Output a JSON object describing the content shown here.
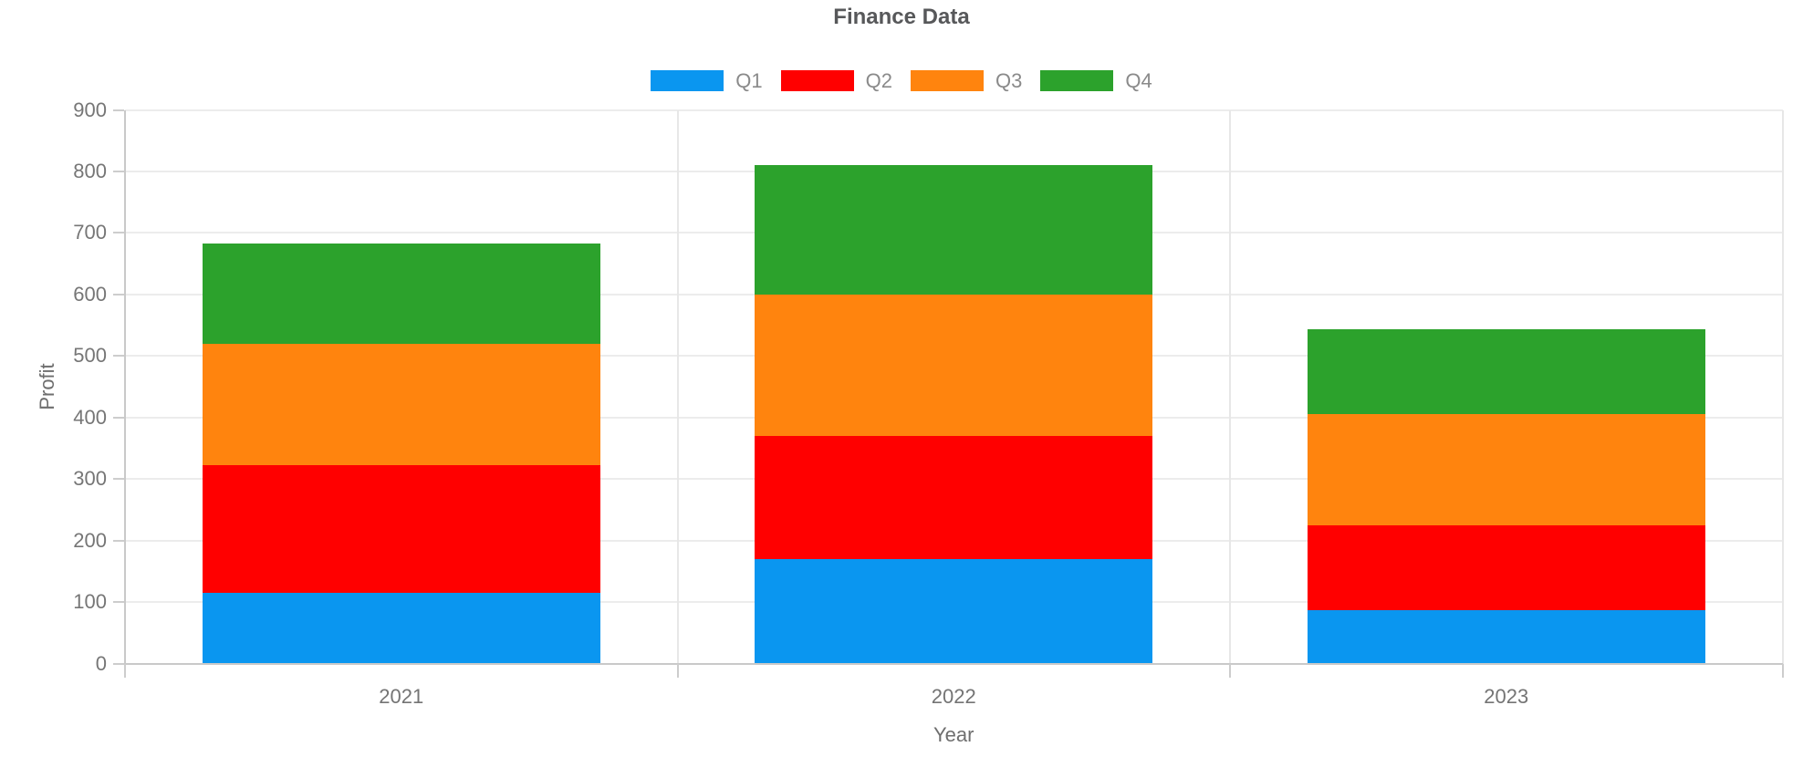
{
  "title": "Finance Data",
  "axes": {
    "y_label": "Profit",
    "x_label": "Year"
  },
  "legend": {
    "entries": [
      "Q1",
      "Q2",
      "Q3",
      "Q4"
    ]
  },
  "colors": {
    "q1_blue": "#0a96f0",
    "q2_red": "#ff0000",
    "q3_orange": "#ff840e",
    "q4_green": "#2ca22c",
    "title_text": "#57585a",
    "tick_text": "#767676",
    "axis_title_text": "#6e6e6e",
    "legend_text": "#8a8a8a",
    "gridline": "#ececec",
    "axis_line": "#c9c9c9",
    "panel_border": "#e7e7e7"
  },
  "chart_data": {
    "type": "bar",
    "stacked": true,
    "title": "Finance Data",
    "categories": [
      "2021",
      "2022",
      "2023"
    ],
    "series": [
      {
        "name": "Q1",
        "color": "#0a96f0",
        "values": [
          115,
          170,
          86
        ]
      },
      {
        "name": "Q2",
        "color": "#ff0000",
        "values": [
          208,
          200,
          139
        ]
      },
      {
        "name": "Q3",
        "color": "#ff840e",
        "values": [
          197,
          230,
          180
        ]
      },
      {
        "name": "Q4",
        "color": "#2ca22c",
        "values": [
          163,
          210,
          139
        ]
      }
    ],
    "stack_totals": [
      683,
      810,
      544
    ],
    "xlabel": "Year",
    "ylabel": "Profit",
    "ylim": [
      0,
      900
    ],
    "ytick_step": 100,
    "ytick_labels": [
      "0",
      "100",
      "200",
      "300",
      "400",
      "500",
      "600",
      "700",
      "800",
      "900"
    ],
    "grid": true,
    "legend_position": "top"
  }
}
